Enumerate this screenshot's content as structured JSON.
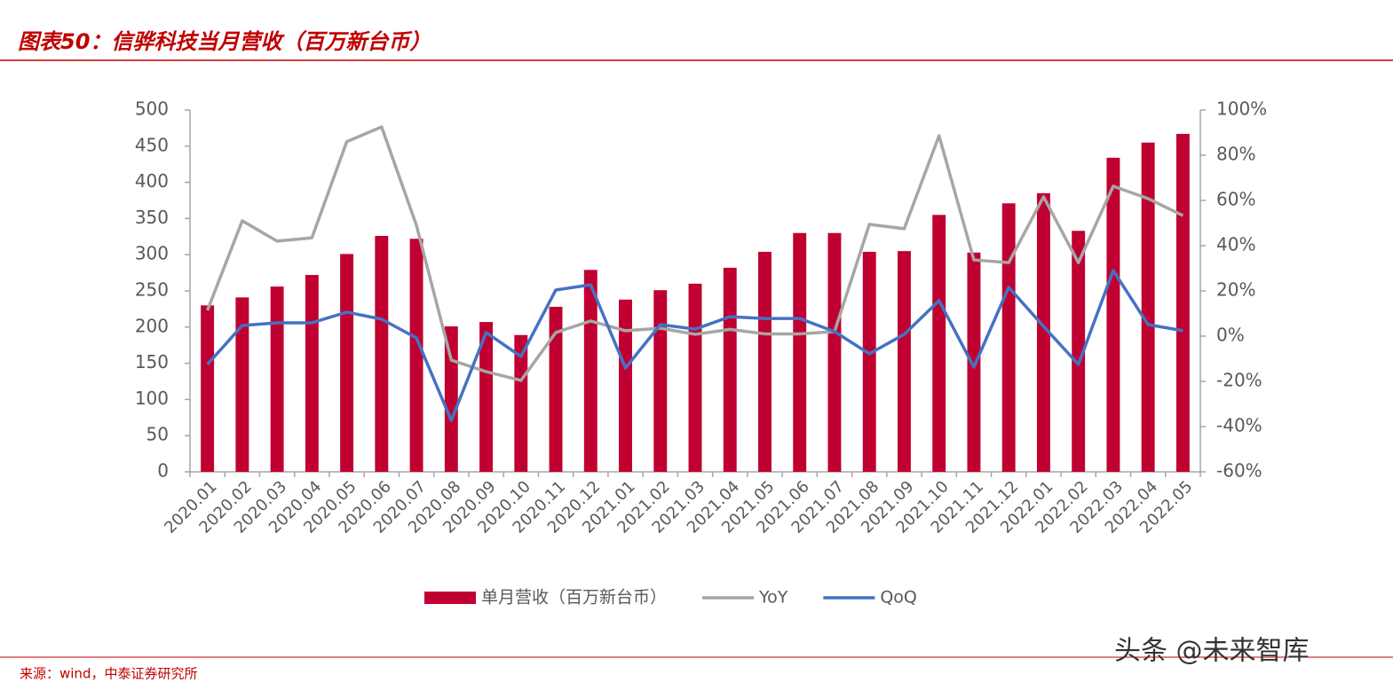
{
  "header": {
    "title": "图表50：信骅科技当月营收（百万新台币）"
  },
  "chart_data": {
    "type": "combo",
    "categories": [
      "2020.01",
      "2020.02",
      "2020.03",
      "2020.04",
      "2020.05",
      "2020.06",
      "2020.07",
      "2020.08",
      "2020.09",
      "2020.10",
      "2020.11",
      "2020.12",
      "2021.01",
      "2021.02",
      "2021.03",
      "2021.04",
      "2021.05",
      "2021.06",
      "2021.07",
      "2021.08",
      "2021.09",
      "2021.10",
      "2021.11",
      "2021.12",
      "2022.01",
      "2022.02",
      "2022.03",
      "2022.04",
      "2022.05"
    ],
    "series": [
      {
        "name": "单月营收（百万新台币）",
        "type": "bar",
        "color": "#c00030",
        "values": [
          230,
          241,
          256,
          272,
          301,
          326,
          322,
          201,
          207,
          189,
          228,
          279,
          238,
          251,
          260,
          282,
          304,
          330,
          330,
          304,
          305,
          355,
          303,
          371,
          385,
          333,
          434,
          455,
          467
        ]
      },
      {
        "name": "YoY",
        "type": "line",
        "axis": "y2",
        "color": "#a6a6a6",
        "values": [
          11.4,
          51,
          42,
          43.5,
          86,
          92.5,
          49,
          -10.6,
          -15.7,
          -19.6,
          1.6,
          6.7,
          2.4,
          3.5,
          0.8,
          3,
          1,
          1,
          2,
          49.4,
          47.5,
          88.6,
          33.7,
          32.5,
          61.6,
          32.5,
          66.3,
          60.8,
          53.3
        ]
      },
      {
        "name": "QoQ",
        "type": "line",
        "axis": "y2",
        "color": "#4472c4",
        "values": [
          -12.5,
          4.7,
          5.9,
          5.9,
          10.6,
          7.5,
          -0.8,
          -37.3,
          1.6,
          -9,
          20.4,
          22.7,
          -14.1,
          5.1,
          3.1,
          8.6,
          7.8,
          7.8,
          2,
          -7.8,
          0.8,
          15.7,
          -13.7,
          21.6,
          4.3,
          -12.5,
          29,
          5.1,
          2.4
        ]
      }
    ],
    "ylim": [
      0,
      500
    ],
    "yticks": [
      0,
      50,
      100,
      150,
      200,
      250,
      300,
      350,
      400,
      450,
      500
    ],
    "y2lim": [
      -60,
      100
    ],
    "y2ticks": [
      {
        "value": -60,
        "label": "-60%"
      },
      {
        "value": -40,
        "label": "-40%"
      },
      {
        "value": -20,
        "label": "-20%"
      },
      {
        "value": 0,
        "label": "0%"
      },
      {
        "value": 20,
        "label": "20%"
      },
      {
        "value": 40,
        "label": "40%"
      },
      {
        "value": 60,
        "label": "60%"
      },
      {
        "value": 80,
        "label": "80%"
      },
      {
        "value": 100,
        "label": "100%"
      }
    ],
    "grid": false
  },
  "footer": {
    "source": "来源：wind，中泰证券研究所",
    "watermark": "头条 @未来智库"
  }
}
